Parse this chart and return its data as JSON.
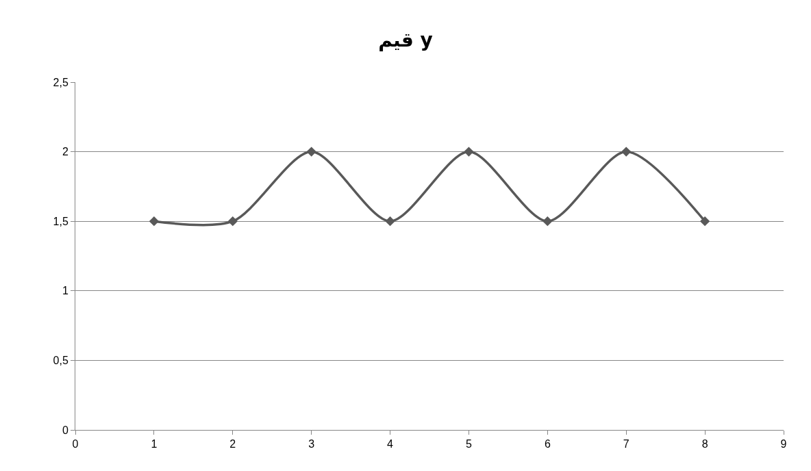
{
  "chart_data": {
    "type": "line",
    "title": "قيم y",
    "x": [
      1,
      2,
      3,
      4,
      5,
      6,
      7,
      8
    ],
    "series": [
      {
        "color": "#595959",
        "values": [
          1.5,
          1.5,
          2,
          1.5,
          2,
          1.5,
          2,
          1.5
        ]
      }
    ],
    "xlim": [
      0,
      9
    ],
    "xticks": [
      0,
      1,
      2,
      3,
      4,
      5,
      6,
      7,
      8,
      9
    ],
    "ylim": [
      0,
      2.5
    ],
    "yticks": [
      0,
      {
        "value": 0.5,
        "label": "0,5"
      },
      1,
      {
        "value": 1.5,
        "label": "1,5"
      },
      2,
      {
        "value": 2.5,
        "label": "2,5"
      }
    ],
    "grid": "y",
    "marker": "diamond",
    "line_style": "solid",
    "legend": false
  }
}
